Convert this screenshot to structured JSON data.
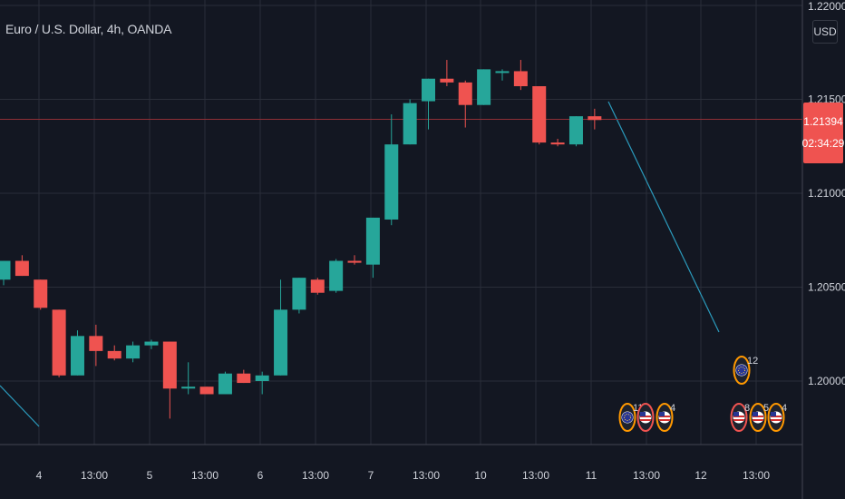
{
  "chart_data": {
    "type": "candlestick",
    "title": "Euro / U.S. Dollar, 4h, OANDA",
    "currency": "USD",
    "ylim": [
      1.1967,
      1.2197
    ],
    "price_ticks": [
      "1.20000",
      "1.20500",
      "1.21000",
      "1.21500"
    ],
    "top_tick_partial": "1.22000",
    "time_labels": [
      "4",
      "13:00",
      "5",
      "13:00",
      "6",
      "13:00",
      "7",
      "13:00",
      "10",
      "13:00",
      "11",
      "13:00",
      "12",
      "13:00"
    ],
    "current_price": {
      "value": "1.21394",
      "countdown": "02:34:29",
      "level": 1.21394
    },
    "candles": [
      [
        1.2054,
        1.2064,
        1.2051,
        1.2064
      ],
      [
        1.2064,
        1.2067,
        1.2056,
        1.2056
      ],
      [
        1.2054,
        1.2054,
        1.2038,
        1.2039
      ],
      [
        1.2038,
        1.2038,
        1.2002,
        1.2003
      ],
      [
        1.2003,
        1.2027,
        1.2003,
        1.2024
      ],
      [
        1.2024,
        1.203,
        1.2008,
        1.2016
      ],
      [
        1.2016,
        1.2019,
        1.2011,
        1.2012
      ],
      [
        1.2012,
        1.2021,
        1.201,
        1.2019
      ],
      [
        1.2019,
        1.2022,
        1.2017,
        1.2021
      ],
      [
        1.2021,
        1.2021,
        1.198,
        1.1996
      ],
      [
        1.1996,
        1.201,
        1.1993,
        1.1997
      ],
      [
        1.1997,
        1.1997,
        1.1993,
        1.1993
      ],
      [
        1.1993,
        1.2005,
        1.1993,
        1.2004
      ],
      [
        1.2004,
        1.2006,
        1.1999,
        1.1999
      ],
      [
        1.2,
        1.2005,
        1.1993,
        1.2003
      ],
      [
        1.2003,
        1.2054,
        1.2003,
        1.2038
      ],
      [
        1.2038,
        1.2055,
        1.2036,
        1.2055
      ],
      [
        1.2054,
        1.2055,
        1.2046,
        1.2047
      ],
      [
        1.2048,
        1.2065,
        1.2047,
        1.2064
      ],
      [
        1.2064,
        1.2067,
        1.2062,
        1.2063
      ],
      [
        1.2062,
        1.2087,
        1.2055,
        1.2087
      ],
      [
        1.2086,
        1.2142,
        1.2083,
        1.2126
      ],
      [
        1.2126,
        1.215,
        1.2126,
        1.2148
      ],
      [
        1.2149,
        1.2161,
        1.2134,
        1.2161
      ],
      [
        1.2161,
        1.2171,
        1.2157,
        1.2159
      ],
      [
        1.2159,
        1.216,
        1.2135,
        1.2147
      ],
      [
        1.2147,
        1.2166,
        1.2147,
        1.2166
      ],
      [
        1.2165,
        1.2166,
        1.216,
        1.2165
      ],
      [
        1.2165,
        1.2171,
        1.2155,
        1.2157
      ],
      [
        1.2157,
        1.2157,
        1.2126,
        1.2127
      ],
      [
        1.2127,
        1.2129,
        1.2125,
        1.2126
      ],
      [
        1.2126,
        1.2141,
        1.2125,
        1.2141
      ],
      [
        1.2141,
        1.2145,
        1.2134,
        1.2139
      ]
    ],
    "colors": {
      "background": "#131722",
      "up": "#26a69a",
      "down": "#ef5350",
      "grid": "#2a2e39",
      "text": "#d1d4dc",
      "projection": "#2b9bbd",
      "price_line": "#8f2f36"
    },
    "events": [
      {
        "label": "11",
        "icon": "eu-flag-icon",
        "ring": "#ff9800"
      },
      {
        "label": "",
        "icon": "us-flag-icon",
        "ring": "#ef5350"
      },
      {
        "label": "4",
        "icon": "us-flag-icon",
        "ring": "#ff9800"
      },
      {
        "label": "12",
        "icon": "eu-flag-icon",
        "ring": "#ff9800"
      },
      {
        "label": "8",
        "icon": "us-flag-icon",
        "ring": "#ef5350"
      },
      {
        "label": "5",
        "icon": "us-flag-icon",
        "ring": "#ff9800"
      },
      {
        "label": "4",
        "icon": "us-flag-icon",
        "ring": "#ff9800"
      }
    ]
  }
}
